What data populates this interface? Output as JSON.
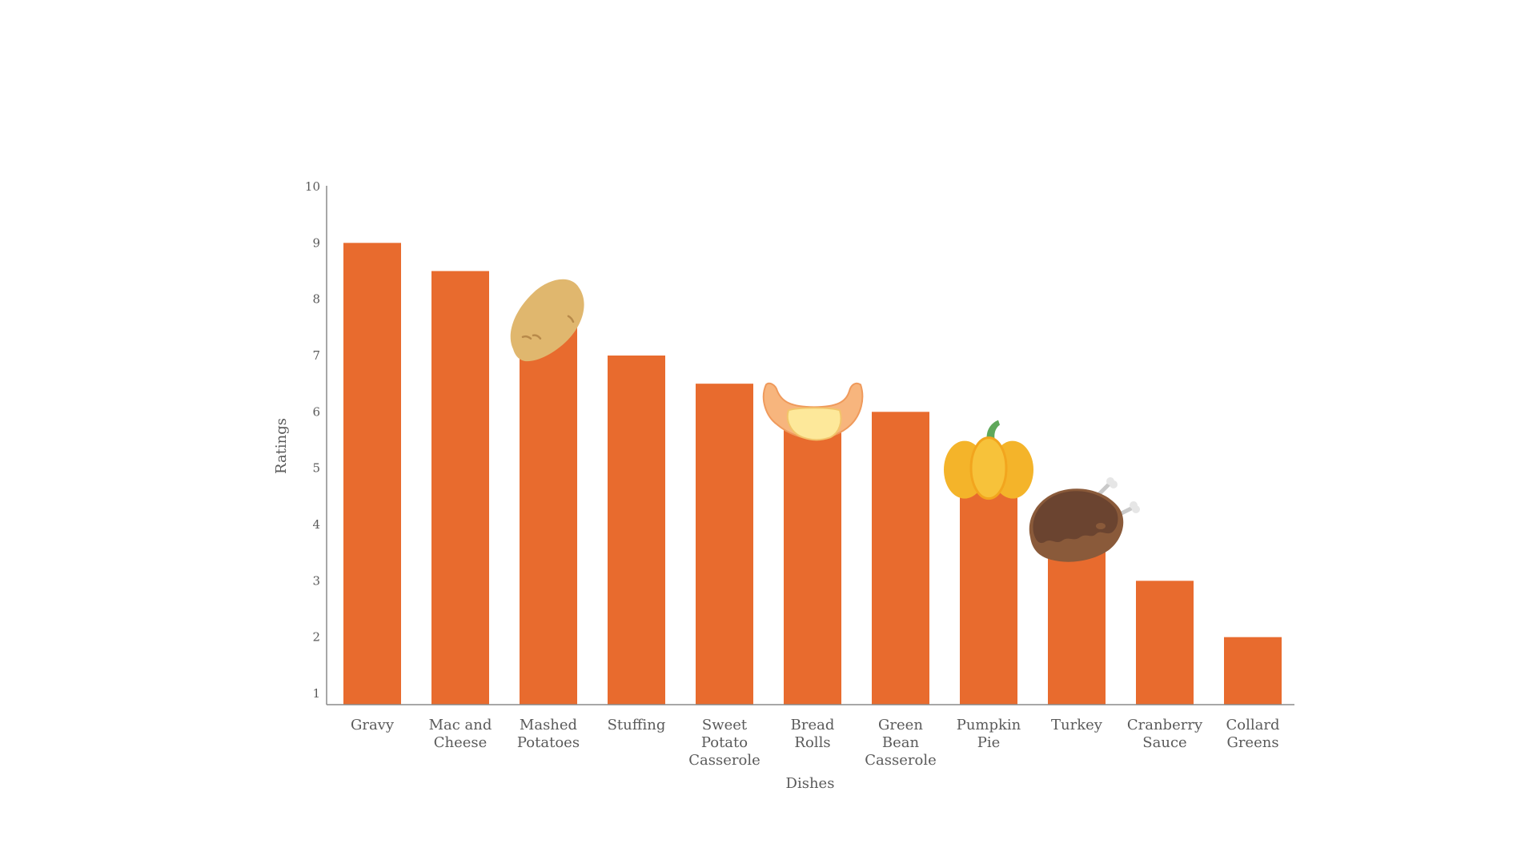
{
  "chart_data": {
    "type": "bar",
    "title": "",
    "xlabel": "Dishes",
    "ylabel": "Ratings",
    "ylim": [
      1,
      10
    ],
    "yticks": [
      1,
      2,
      3,
      4,
      5,
      6,
      7,
      8,
      9,
      10
    ],
    "grid": false,
    "categories": [
      "Gravy",
      "Mac and Cheese",
      "Mashed Potatoes",
      "Stuffing",
      "Sweet Potato Casserole",
      "Bread Rolls",
      "Green Bean Casserole",
      "Pumpkin Pie",
      "Turkey",
      "Cranberry Sauce",
      "Collard Greens"
    ],
    "category_label_lines": [
      [
        "Gravy"
      ],
      [
        "Mac and",
        "Cheese"
      ],
      [
        "Mashed",
        "Potatoes"
      ],
      [
        "Stuffing"
      ],
      [
        "Sweet",
        "Potato",
        "Casserole"
      ],
      [
        "Bread",
        "Rolls"
      ],
      [
        "Green",
        "Bean",
        "Casserole"
      ],
      [
        "Pumpkin",
        "Pie"
      ],
      [
        "Turkey"
      ],
      [
        "Cranberry",
        "Sauce"
      ],
      [
        "Collard",
        "Greens"
      ]
    ],
    "values": [
      9,
      8.5,
      7.5,
      7,
      6.5,
      6,
      6,
      5,
      4,
      3,
      2
    ],
    "bar_color": "#e86b2e",
    "decorations": [
      {
        "category": "Mashed Potatoes",
        "icon": "potato-icon"
      },
      {
        "category": "Bread Rolls",
        "icon": "croissant-icon"
      },
      {
        "category": "Pumpkin Pie",
        "icon": "pumpkin-icon"
      },
      {
        "category": "Turkey",
        "icon": "roast-turkey-icon"
      }
    ]
  }
}
